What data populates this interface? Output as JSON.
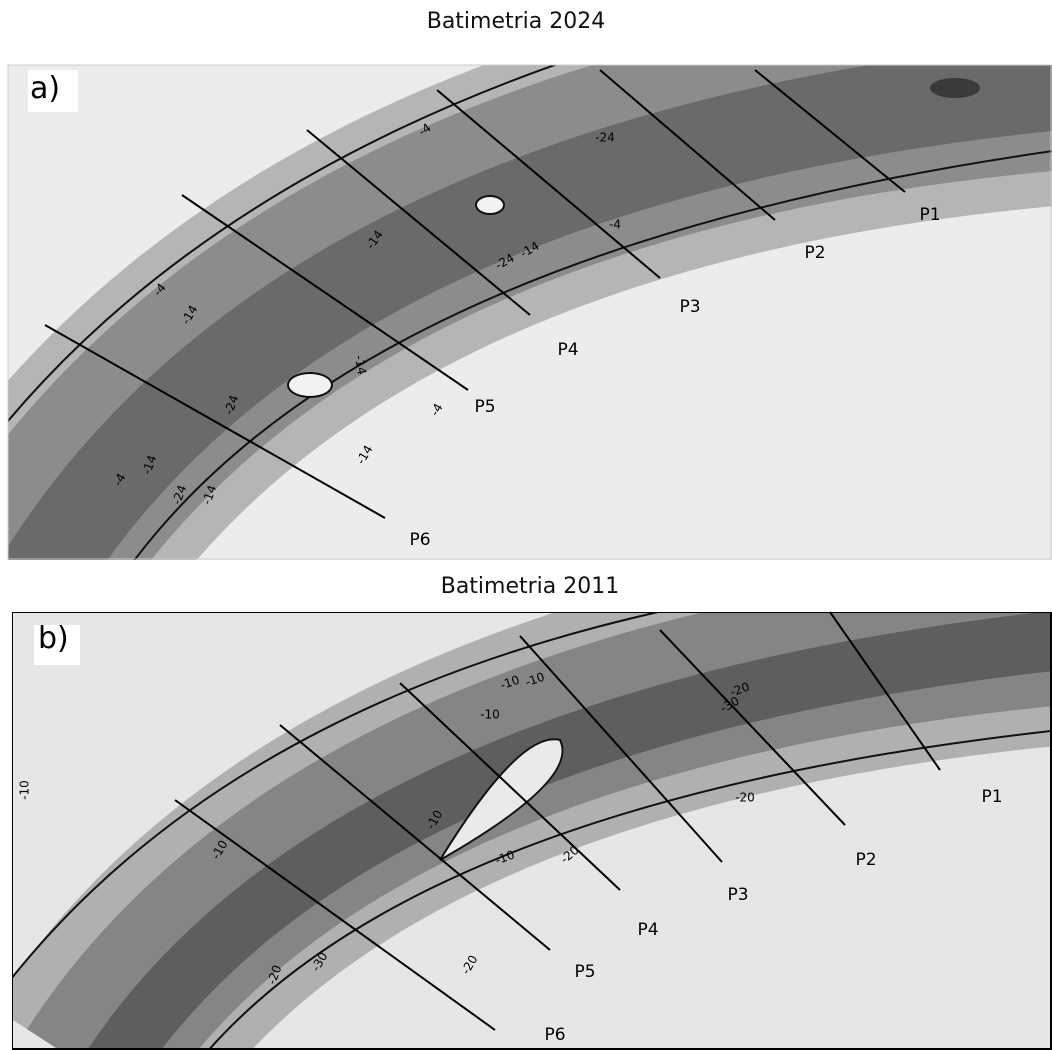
{
  "panels": [
    {
      "title": "Batimetria 2024",
      "label": "a)",
      "profiles": [
        "P1",
        "P2",
        "P3",
        "P4",
        "P5",
        "P6"
      ],
      "contour_labels": [
        "-4",
        "-24",
        "-4",
        "-14",
        "-24",
        "-14",
        "-4",
        "-14",
        "-14",
        "-24",
        "-4",
        "-14",
        "-4",
        "-14",
        "-24",
        "-14"
      ]
    },
    {
      "title": "Batimetria 2011",
      "label": "b)",
      "profiles": [
        "P1",
        "P2",
        "P3",
        "P4",
        "P5",
        "P6"
      ],
      "contour_labels": [
        "-10",
        "-10",
        "-20",
        "-30",
        "-10",
        "-20",
        "-10",
        "-10",
        "-10",
        "-20",
        "-20",
        "-30",
        "-20",
        "-10"
      ]
    }
  ]
}
